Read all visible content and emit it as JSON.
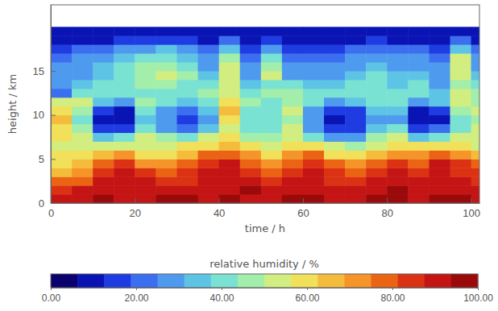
{
  "chart_data": {
    "type": "heatmap",
    "x_label": "time / h",
    "y_label": "height / km",
    "xlim": [
      0,
      102
    ],
    "ylim": [
      0,
      22.5
    ],
    "xticks": [
      0,
      20,
      40,
      60,
      80,
      100
    ],
    "yticks": [
      0,
      5,
      10,
      15
    ],
    "x_bins": [
      0,
      5,
      10,
      15,
      20,
      25,
      30,
      35,
      40,
      45,
      50,
      55,
      60,
      65,
      70,
      75,
      80,
      85,
      90,
      95,
      100,
      102
    ],
    "y_bins": [
      0,
      1,
      2,
      3,
      4,
      5,
      6,
      7,
      8,
      9,
      10,
      11,
      12,
      13,
      14,
      15,
      16,
      17,
      18,
      19,
      20
    ],
    "cells": [
      [
        90,
        92,
        95,
        93,
        92,
        95,
        94,
        92,
        95,
        93,
        92,
        94,
        95,
        93,
        92,
        95,
        94,
        93,
        95,
        94,
        93
      ],
      [
        85,
        88,
        92,
        90,
        93,
        92,
        90,
        88,
        92,
        94,
        90,
        92,
        93,
        90,
        88,
        92,
        94,
        90,
        92,
        93,
        90
      ],
      [
        75,
        78,
        88,
        90,
        88,
        85,
        86,
        90,
        92,
        88,
        85,
        88,
        90,
        86,
        84,
        88,
        90,
        88,
        92,
        88,
        86
      ],
      [
        68,
        70,
        85,
        88,
        82,
        80,
        84,
        88,
        90,
        85,
        80,
        85,
        88,
        82,
        78,
        84,
        88,
        85,
        90,
        86,
        82
      ],
      [
        62,
        65,
        78,
        82,
        70,
        72,
        78,
        85,
        88,
        80,
        72,
        80,
        85,
        75,
        70,
        78,
        82,
        80,
        88,
        82,
        75
      ],
      [
        58,
        60,
        65,
        70,
        60,
        62,
        68,
        75,
        80,
        70,
        62,
        72,
        75,
        62,
        60,
        68,
        72,
        70,
        78,
        72,
        65
      ],
      [
        55,
        55,
        50,
        55,
        52,
        55,
        58,
        62,
        68,
        58,
        50,
        62,
        60,
        50,
        48,
        55,
        60,
        58,
        62,
        60,
        55
      ],
      [
        60,
        55,
        35,
        38,
        55,
        45,
        40,
        50,
        60,
        48,
        45,
        55,
        42,
        25,
        30,
        45,
        50,
        35,
        40,
        50,
        52
      ],
      [
        62,
        45,
        18,
        15,
        40,
        30,
        20,
        35,
        55,
        40,
        42,
        50,
        30,
        15,
        18,
        35,
        38,
        15,
        20,
        42,
        50
      ],
      [
        65,
        40,
        12,
        10,
        35,
        25,
        15,
        30,
        60,
        38,
        40,
        48,
        25,
        12,
        15,
        30,
        30,
        10,
        12,
        40,
        48
      ],
      [
        62,
        45,
        15,
        12,
        40,
        30,
        20,
        35,
        65,
        42,
        40,
        50,
        30,
        15,
        18,
        35,
        35,
        12,
        15,
        45,
        50
      ],
      [
        55,
        50,
        35,
        30,
        45,
        40,
        35,
        42,
        60,
        45,
        42,
        48,
        40,
        30,
        35,
        40,
        40,
        30,
        35,
        50,
        48
      ],
      [
        20,
        40,
        40,
        38,
        42,
        38,
        40,
        45,
        55,
        42,
        45,
        45,
        40,
        38,
        40,
        42,
        38,
        40,
        35,
        55,
        45
      ],
      [
        25,
        35,
        38,
        40,
        45,
        45,
        42,
        40,
        50,
        35,
        40,
        38,
        35,
        35,
        38,
        40,
        35,
        38,
        30,
        45,
        40
      ],
      [
        30,
        30,
        35,
        42,
        48,
        50,
        45,
        35,
        55,
        30,
        50,
        30,
        28,
        30,
        35,
        38,
        32,
        35,
        28,
        50,
        35
      ],
      [
        25,
        28,
        32,
        40,
        45,
        48,
        40,
        30,
        50,
        25,
        45,
        28,
        25,
        25,
        30,
        32,
        28,
        30,
        25,
        55,
        30
      ],
      [
        22,
        25,
        30,
        35,
        40,
        42,
        35,
        25,
        45,
        20,
        40,
        22,
        20,
        22,
        25,
        28,
        25,
        25,
        22,
        50,
        25
      ],
      [
        18,
        20,
        22,
        28,
        30,
        32,
        28,
        20,
        35,
        18,
        30,
        18,
        15,
        18,
        20,
        22,
        20,
        20,
        18,
        35,
        20
      ],
      [
        10,
        12,
        12,
        15,
        18,
        18,
        15,
        12,
        20,
        12,
        18,
        12,
        10,
        12,
        12,
        14,
        12,
        12,
        10,
        20,
        12
      ],
      [
        8,
        8,
        8,
        10,
        10,
        10,
        10,
        8,
        12,
        8,
        10,
        8,
        8,
        8,
        8,
        10,
        8,
        8,
        8,
        12,
        8
      ]
    ],
    "colorbar": {
      "title": "relative humidity / %",
      "range": [
        0,
        100
      ],
      "ticks": [
        {
          "value": 0,
          "label": "0.00"
        },
        {
          "value": 20,
          "label": "20.00"
        },
        {
          "value": 40,
          "label": "40.00"
        },
        {
          "value": 60,
          "label": "60.00"
        },
        {
          "value": 80,
          "label": "80.00"
        },
        {
          "value": 100,
          "label": "100.00"
        }
      ]
    }
  }
}
